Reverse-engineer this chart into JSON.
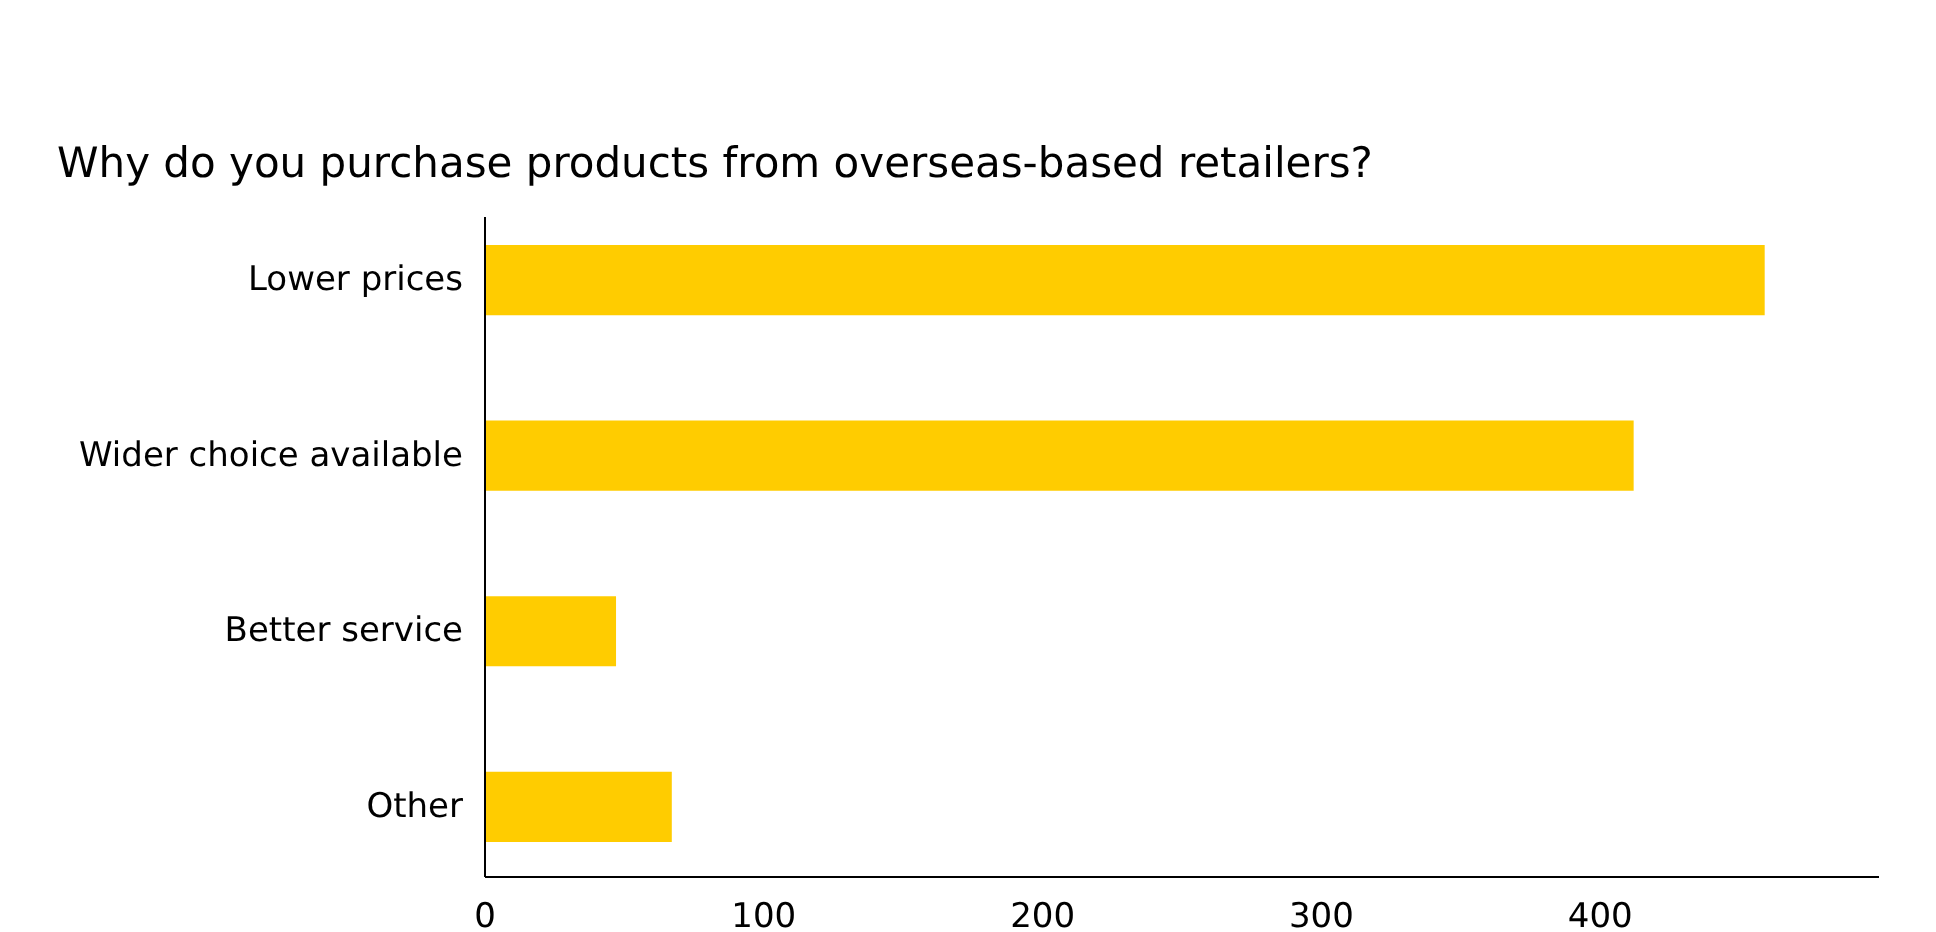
{
  "chart_data": {
    "type": "bar",
    "orientation": "horizontal",
    "title": "Why do you purchase products from overseas-based retailers?",
    "categories": [
      "Lower prices",
      "Wider choice available",
      "Better service",
      "Other"
    ],
    "values": [
      459,
      412,
      47,
      67
    ],
    "color": "#ffcc00",
    "xlim": [
      0,
      500
    ],
    "xticks": [
      0,
      100,
      200,
      300,
      400
    ],
    "grid": false
  }
}
